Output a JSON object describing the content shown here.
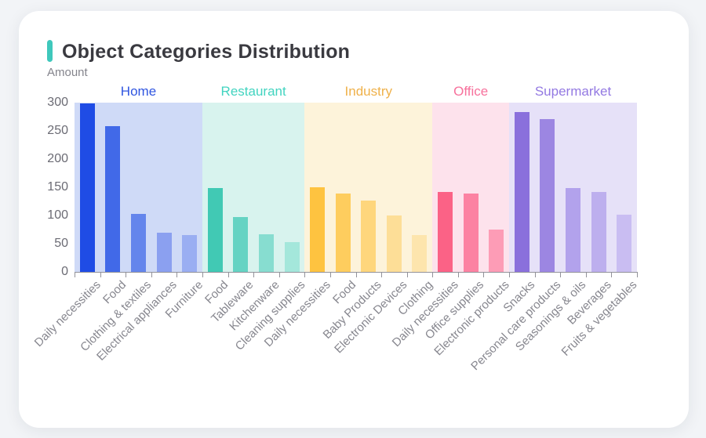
{
  "page": {
    "title": "Object Categories Distribution",
    "y_axis_name": "Amount"
  },
  "colors": {
    "accent": "#3fc8bc",
    "title_text": "#3a3a40",
    "axis_text": "#6b6b74",
    "x_label_text": "#87878f",
    "axis_line": "#92929a",
    "card_bg": "#ffffff",
    "page_bg": "#f2f4f7"
  },
  "chart_data": {
    "type": "bar",
    "title": "Object Categories Distribution",
    "xlabel": "",
    "ylabel": "Amount",
    "ylim": [
      0,
      300
    ],
    "y_ticks": [
      0,
      50,
      100,
      150,
      200,
      250,
      300
    ],
    "grid": false,
    "legend_position": "none",
    "groups": [
      {
        "name": "Home",
        "label_color": "#2f55e0",
        "band_color": "#cfdaf7",
        "bars": [
          {
            "label": "Daily necessities",
            "value": 298,
            "color": "#1f4ce5"
          },
          {
            "label": "Food",
            "value": 258,
            "color": "#4169e8"
          },
          {
            "label": "Clothing & textiles",
            "value": 103,
            "color": "#6485ec"
          },
          {
            "label": "Electrical appliances",
            "value": 70,
            "color": "#8ba0f0"
          },
          {
            "label": "Furniture",
            "value": 65,
            "color": "#9aaef2"
          }
        ]
      },
      {
        "name": "Restaurant",
        "label_color": "#42d4c0",
        "band_color": "#d8f3ee",
        "bars": [
          {
            "label": "Food",
            "value": 148,
            "color": "#41c9b4"
          },
          {
            "label": "Tableware",
            "value": 97,
            "color": "#65d3c3"
          },
          {
            "label": "Kitchenware",
            "value": 66,
            "color": "#87ddd0"
          },
          {
            "label": "Cleaning supplies",
            "value": 53,
            "color": "#a4e7db"
          }
        ]
      },
      {
        "name": "Industry",
        "label_color": "#efb14a",
        "band_color": "#fdf3da",
        "bars": [
          {
            "label": "Daily necessities",
            "value": 150,
            "color": "#fec340"
          },
          {
            "label": "Food",
            "value": 139,
            "color": "#fecd5e"
          },
          {
            "label": "Baby Products",
            "value": 126,
            "color": "#fed67c"
          },
          {
            "label": "Electronic Devices",
            "value": 100,
            "color": "#fdde97"
          },
          {
            "label": "Clothing",
            "value": 65,
            "color": "#fde5ad"
          }
        ]
      },
      {
        "name": "Office",
        "label_color": "#f7719c",
        "band_color": "#fde2ec",
        "bars": [
          {
            "label": "Daily necessities",
            "value": 142,
            "color": "#fb6286"
          },
          {
            "label": "Office supplies",
            "value": 139,
            "color": "#fc82a2"
          },
          {
            "label": "Electronic products",
            "value": 75,
            "color": "#fd9cb6"
          }
        ]
      },
      {
        "name": "Supermarket",
        "label_color": "#9379e2",
        "band_color": "#e6e1f8",
        "bars": [
          {
            "label": "Snacks",
            "value": 284,
            "color": "#8a70dc"
          },
          {
            "label": "Personal care products",
            "value": 271,
            "color": "#9c86e2"
          },
          {
            "label": "Seasonings & oils",
            "value": 149,
            "color": "#b2a2ec"
          },
          {
            "label": "Beverages",
            "value": 141,
            "color": "#bdafee"
          },
          {
            "label": "Fruits & vegetables",
            "value": 102,
            "color": "#c9bdf2"
          }
        ]
      }
    ]
  }
}
